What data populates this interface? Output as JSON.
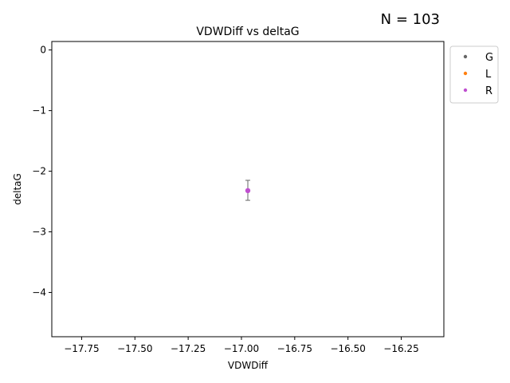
{
  "annotation": "N = 103",
  "chart_data": {
    "type": "scatter",
    "title": "VDWDiff vs deltaG",
    "xlabel": "VDWDiff",
    "ylabel": "deltaG",
    "xlim": [
      -17.89,
      -16.05
    ],
    "ylim": [
      -4.73,
      0.14
    ],
    "x_ticks": [
      -17.75,
      -17.5,
      -17.25,
      -17.0,
      -16.75,
      -16.5,
      -16.25
    ],
    "x_tick_labels": [
      "−17.75",
      "−17.50",
      "−17.25",
      "−17.00",
      "−16.75",
      "−16.50",
      "−16.25"
    ],
    "y_ticks": [
      0,
      -1,
      -2,
      -3,
      -4
    ],
    "y_tick_labels": [
      "0",
      "−1",
      "−2",
      "−3",
      "−4"
    ],
    "grid": false,
    "legend_position": "outside-top-right",
    "series": [
      {
        "name": "G",
        "color": "#666666",
        "points": []
      },
      {
        "name": "L",
        "color": "#ff7f0e",
        "points": []
      },
      {
        "name": "R",
        "color": "#bf4fcf",
        "points": [
          {
            "x": -16.97,
            "y": -2.32,
            "yerr_low": -2.48,
            "yerr_high": -2.15
          }
        ]
      }
    ],
    "errorbar_color": "#666666"
  }
}
